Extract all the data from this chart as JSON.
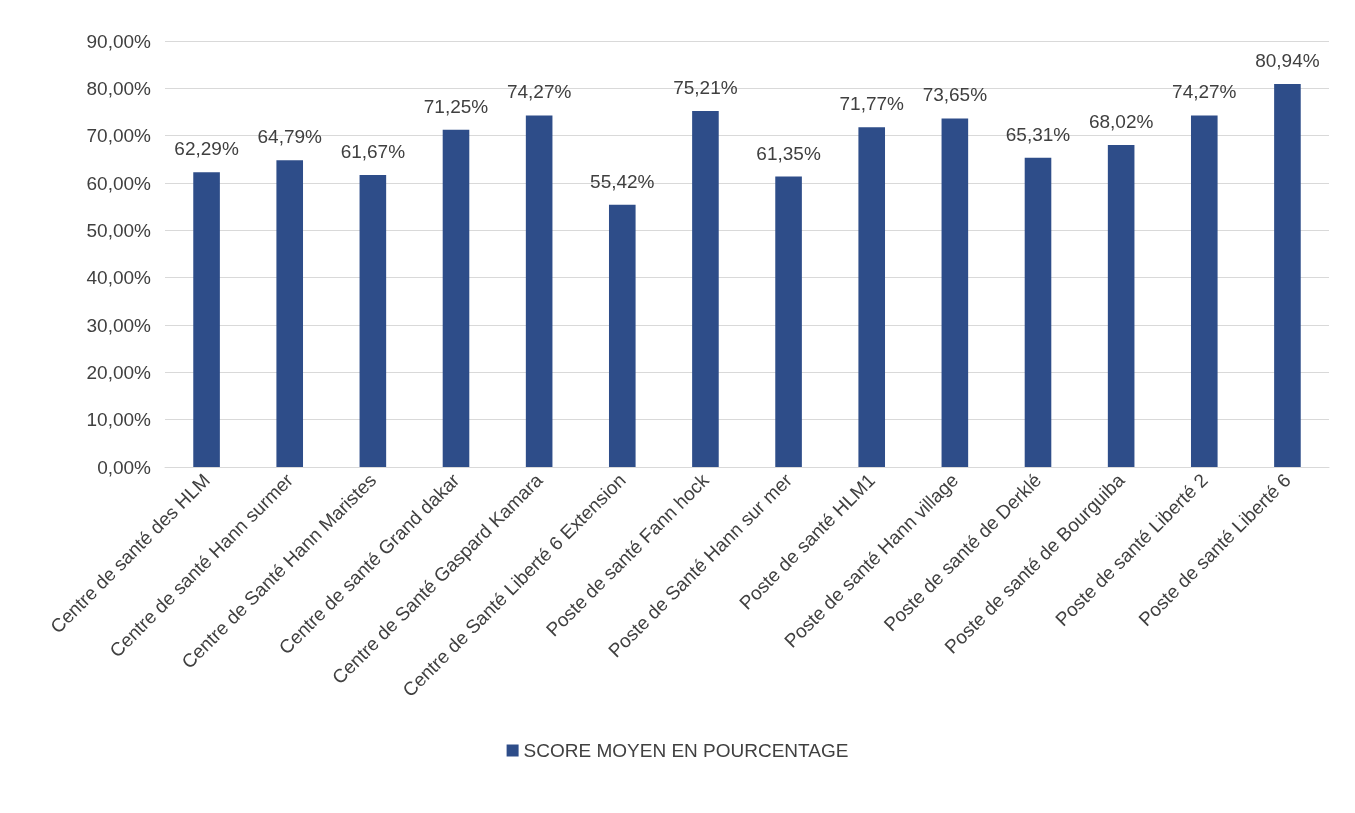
{
  "chart_data": {
    "type": "bar",
    "categories": [
      "Centre de santé des HLM",
      "Centre de santé Hann surmer",
      "Centre de Santé Hann Maristes",
      "Centre de santé Grand dakar",
      "Centre de Santé Gaspard Kamara",
      "Centre de Santé Liberté 6 Extension",
      "Poste de santé Fann hock",
      "Poste de Santé Hann sur mer",
      "Poste de santé HLM1",
      "Poste de santé Hann village",
      "Poste de santé de Derklé",
      "Poste de santé de Bourguiba",
      "Poste de santé Liberté 2",
      "Poste de santé Liberté 6"
    ],
    "series": [
      {
        "name": "SCORE MOYEN EN POURCENTAGE",
        "color": "#2e4d89",
        "values": [
          62.29,
          64.79,
          61.67,
          71.25,
          74.27,
          55.42,
          75.21,
          61.35,
          71.77,
          73.65,
          65.31,
          68.02,
          74.27,
          80.94
        ],
        "value_labels": [
          "62,29%",
          "64,79%",
          "61,67%",
          "71,25%",
          "74,27%",
          "55,42%",
          "75,21%",
          "61,35%",
          "71,77%",
          "73,65%",
          "65,31%",
          "68,02%",
          "74,27%",
          "80,94%"
        ]
      }
    ],
    "ylim": [
      0,
      90
    ],
    "yticks": [
      {
        "value": 0,
        "label": "0,00%"
      },
      {
        "value": 10,
        "label": "10,00%"
      },
      {
        "value": 20,
        "label": "20,00%"
      },
      {
        "value": 30,
        "label": "30,00%"
      },
      {
        "value": 40,
        "label": "40,00%"
      },
      {
        "value": 50,
        "label": "50,00%"
      },
      {
        "value": 60,
        "label": "60,00%"
      },
      {
        "value": 70,
        "label": "70,00%"
      },
      {
        "value": 80,
        "label": "80,00%"
      },
      {
        "value": 90,
        "label": "90,00%"
      }
    ],
    "grid": "y",
    "legend": "bottom"
  }
}
